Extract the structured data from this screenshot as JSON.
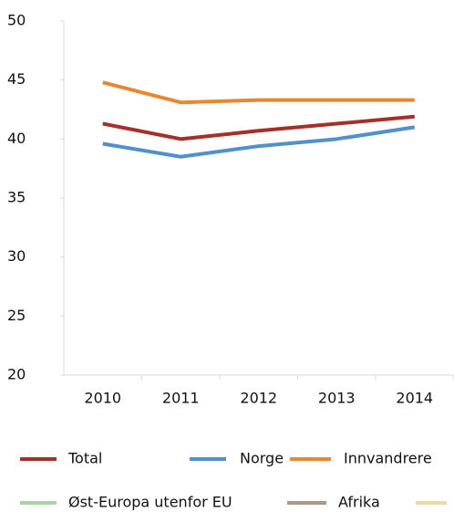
{
  "chart_data": {
    "type": "line",
    "categories": [
      "2010",
      "2011",
      "2012",
      "2013",
      "2014"
    ],
    "series": [
      {
        "name": "Total",
        "color": "#a5302a",
        "values": [
          41.3,
          40.0,
          40.7,
          41.3,
          41.9
        ]
      },
      {
        "name": "Norge",
        "color": "#4f90cd",
        "values": [
          39.6,
          38.5,
          39.4,
          40.0,
          41.0
        ]
      },
      {
        "name": "Innvandrere",
        "color": "#e8872f",
        "values": [
          44.8,
          43.1,
          43.3,
          43.3,
          43.3
        ]
      },
      {
        "name": "Øst-Europa utenfor EU",
        "color": "#a8d5a2",
        "values": [
          null,
          null,
          null,
          null,
          null
        ]
      },
      {
        "name": "Afrika",
        "color": "#a89a85",
        "values": [
          null,
          null,
          null,
          null,
          null
        ]
      }
    ],
    "ylim": [
      20,
      50
    ],
    "yticks": [
      20,
      25,
      30,
      35,
      40,
      45,
      50
    ]
  }
}
